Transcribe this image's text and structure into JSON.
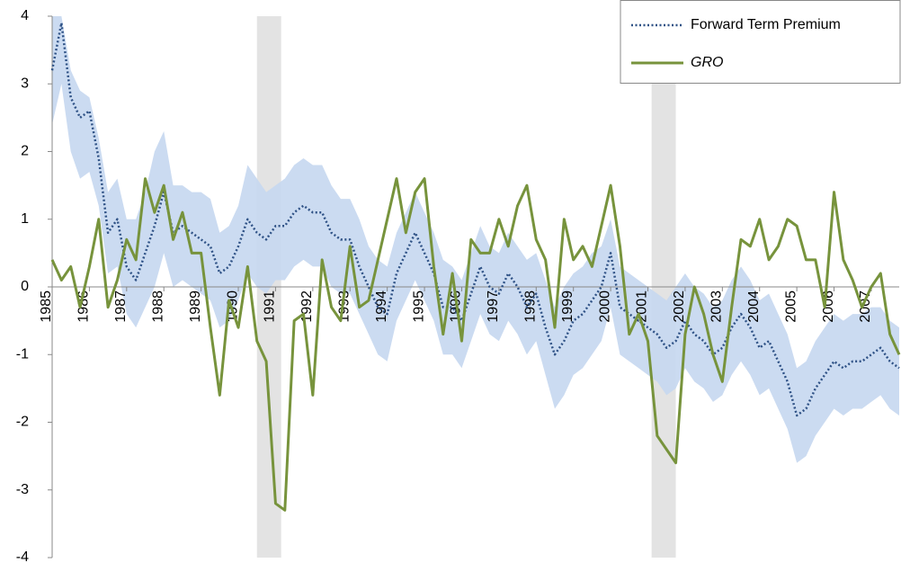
{
  "chart_data": {
    "type": "line",
    "x": [
      1985,
      1985.25,
      1985.5,
      1985.75,
      1986,
      1986.25,
      1986.5,
      1986.75,
      1987,
      1987.25,
      1987.5,
      1987.75,
      1988,
      1988.25,
      1988.5,
      1988.75,
      1989,
      1989.25,
      1989.5,
      1989.75,
      1990,
      1990.25,
      1990.5,
      1990.75,
      1991,
      1991.25,
      1991.5,
      1991.75,
      1992,
      1992.25,
      1992.5,
      1992.75,
      1993,
      1993.25,
      1993.5,
      1993.75,
      1994,
      1994.25,
      1994.5,
      1994.75,
      1995,
      1995.25,
      1995.5,
      1995.75,
      1996,
      1996.25,
      1996.5,
      1996.75,
      1997,
      1997.25,
      1997.5,
      1997.75,
      1998,
      1998.25,
      1998.5,
      1998.75,
      1999,
      1999.25,
      1999.5,
      1999.75,
      2000,
      2000.25,
      2000.5,
      2000.75,
      2001,
      2001.25,
      2001.5,
      2001.75,
      2002,
      2002.25,
      2002.5,
      2002.75,
      2003,
      2003.25,
      2003.5,
      2003.75,
      2004,
      2004.25,
      2004.5,
      2004.75,
      2005,
      2005.25,
      2005.5,
      2005.75,
      2006,
      2006.25,
      2006.5,
      2006.75,
      2007,
      2007.25,
      2007.5,
      2007.75
    ],
    "band": {
      "color": "#c5d7f0",
      "upper": [
        4.0,
        4.0,
        3.2,
        2.9,
        2.8,
        2.2,
        1.4,
        1.6,
        1.0,
        1.0,
        1.4,
        2.0,
        2.3,
        1.5,
        1.5,
        1.4,
        1.4,
        1.3,
        0.8,
        0.9,
        1.2,
        1.8,
        1.6,
        1.4,
        1.5,
        1.6,
        1.8,
        1.9,
        1.8,
        1.8,
        1.5,
        1.3,
        1.3,
        1.0,
        0.6,
        0.4,
        0.3,
        0.8,
        1.1,
        1.4,
        1.1,
        0.8,
        0.4,
        0.3,
        0.1,
        0.5,
        0.9,
        0.6,
        0.5,
        0.8,
        0.6,
        0.4,
        0.5,
        0.1,
        -0.3,
        0.0,
        0.2,
        0.3,
        0.5,
        0.6,
        1.0,
        0.3,
        0.2,
        0.1,
        0.0,
        -0.1,
        -0.2,
        0.0,
        0.2,
        0.0,
        -0.1,
        -0.3,
        -0.2,
        0.1,
        0.3,
        0.1,
        -0.2,
        -0.1,
        -0.4,
        -0.7,
        -1.2,
        -1.1,
        -0.8,
        -0.6,
        -0.4,
        -0.5,
        -0.4,
        -0.4,
        -0.3,
        -0.3,
        -0.5,
        -0.6
      ],
      "lower": [
        2.4,
        3.0,
        2.0,
        1.6,
        1.7,
        1.2,
        0.2,
        0.3,
        -0.4,
        -0.6,
        -0.3,
        0.0,
        0.5,
        0.0,
        0.1,
        0.0,
        -0.1,
        -0.2,
        -0.6,
        -0.5,
        -0.2,
        0.2,
        0.0,
        -0.1,
        0.1,
        0.1,
        0.3,
        0.4,
        0.3,
        0.3,
        0.0,
        -0.1,
        -0.1,
        -0.4,
        -0.7,
        -1.0,
        -1.1,
        -0.5,
        -0.2,
        0.1,
        -0.2,
        -0.5,
        -1.0,
        -1.0,
        -1.2,
        -0.8,
        -0.4,
        -0.7,
        -0.8,
        -0.5,
        -0.7,
        -1.0,
        -0.8,
        -1.3,
        -1.8,
        -1.6,
        -1.3,
        -1.2,
        -1.0,
        -0.8,
        -0.3,
        -1.0,
        -1.1,
        -1.2,
        -1.3,
        -1.4,
        -1.6,
        -1.5,
        -1.2,
        -1.4,
        -1.5,
        -1.7,
        -1.6,
        -1.3,
        -1.1,
        -1.3,
        -1.6,
        -1.5,
        -1.8,
        -2.1,
        -2.6,
        -2.5,
        -2.2,
        -2.0,
        -1.8,
        -1.9,
        -1.8,
        -1.8,
        -1.7,
        -1.6,
        -1.8,
        -1.9
      ]
    },
    "shaded_periods": [
      [
        1990.5,
        1991.15
      ],
      [
        2001.1,
        2001.75
      ]
    ],
    "shade_color": "#d9d9d9",
    "series": [
      {
        "name": "Forward Term Premium",
        "color": "#2f5286",
        "dotted": true,
        "italic": false,
        "values": [
          3.2,
          3.9,
          2.8,
          2.5,
          2.6,
          1.9,
          0.8,
          1.0,
          0.3,
          0.1,
          0.5,
          0.9,
          1.4,
          0.8,
          0.9,
          0.8,
          0.7,
          0.6,
          0.2,
          0.3,
          0.6,
          1.0,
          0.8,
          0.7,
          0.9,
          0.9,
          1.1,
          1.2,
          1.1,
          1.1,
          0.8,
          0.7,
          0.7,
          0.3,
          0.0,
          -0.3,
          -0.4,
          0.2,
          0.5,
          0.8,
          0.5,
          0.2,
          -0.3,
          -0.3,
          -0.5,
          -0.1,
          0.3,
          0.0,
          -0.1,
          0.2,
          0.0,
          -0.3,
          -0.1,
          -0.6,
          -1.0,
          -0.8,
          -0.5,
          -0.4,
          -0.2,
          0.0,
          0.5,
          -0.3,
          -0.4,
          -0.5,
          -0.6,
          -0.7,
          -0.9,
          -0.8,
          -0.5,
          -0.7,
          -0.8,
          -1.0,
          -0.9,
          -0.6,
          -0.4,
          -0.6,
          -0.9,
          -0.8,
          -1.1,
          -1.4,
          -1.9,
          -1.8,
          -1.5,
          -1.3,
          -1.1,
          -1.2,
          -1.1,
          -1.1,
          -1.0,
          -0.9,
          -1.1,
          -1.2
        ]
      },
      {
        "name": "GRO",
        "color": "#77933c",
        "dotted": false,
        "italic": true,
        "values": [
          0.4,
          0.1,
          0.3,
          -0.3,
          0.3,
          1.0,
          -0.3,
          0.1,
          0.7,
          0.4,
          1.6,
          1.1,
          1.5,
          0.7,
          1.1,
          0.5,
          0.5,
          -0.6,
          -1.6,
          -0.2,
          -0.6,
          0.3,
          -0.8,
          -1.1,
          -3.2,
          -3.3,
          -0.5,
          -0.4,
          -1.6,
          0.4,
          -0.3,
          -0.5,
          0.6,
          -0.3,
          -0.2,
          0.4,
          1.0,
          1.6,
          0.8,
          1.4,
          1.6,
          0.3,
          -0.7,
          0.2,
          -0.8,
          0.7,
          0.5,
          0.5,
          1.0,
          0.6,
          1.2,
          1.5,
          0.7,
          0.4,
          -0.6,
          1.0,
          0.4,
          0.6,
          0.3,
          0.9,
          1.5,
          0.6,
          -0.7,
          -0.4,
          -0.8,
          -2.2,
          -2.4,
          -2.6,
          -0.7,
          0.0,
          -0.4,
          -1.0,
          -1.4,
          -0.3,
          0.7,
          0.6,
          1.0,
          0.4,
          0.6,
          1.0,
          0.9,
          0.4,
          0.4,
          -0.3,
          1.4,
          0.4,
          0.1,
          -0.3,
          0.0,
          0.2,
          -0.7,
          -1.0
        ]
      }
    ],
    "xlim": [
      1985,
      2007.75
    ],
    "xticks": [
      1985,
      1986,
      1987,
      1988,
      1989,
      1990,
      1991,
      1992,
      1993,
      1994,
      1995,
      1996,
      1997,
      1998,
      1999,
      2000,
      2001,
      2002,
      2003,
      2004,
      2005,
      2006,
      2007
    ],
    "ylim": [
      -4,
      4
    ],
    "yticks": [
      -4,
      -3,
      -2,
      -1,
      0,
      1,
      2,
      3,
      4
    ],
    "legend": "top-right"
  }
}
